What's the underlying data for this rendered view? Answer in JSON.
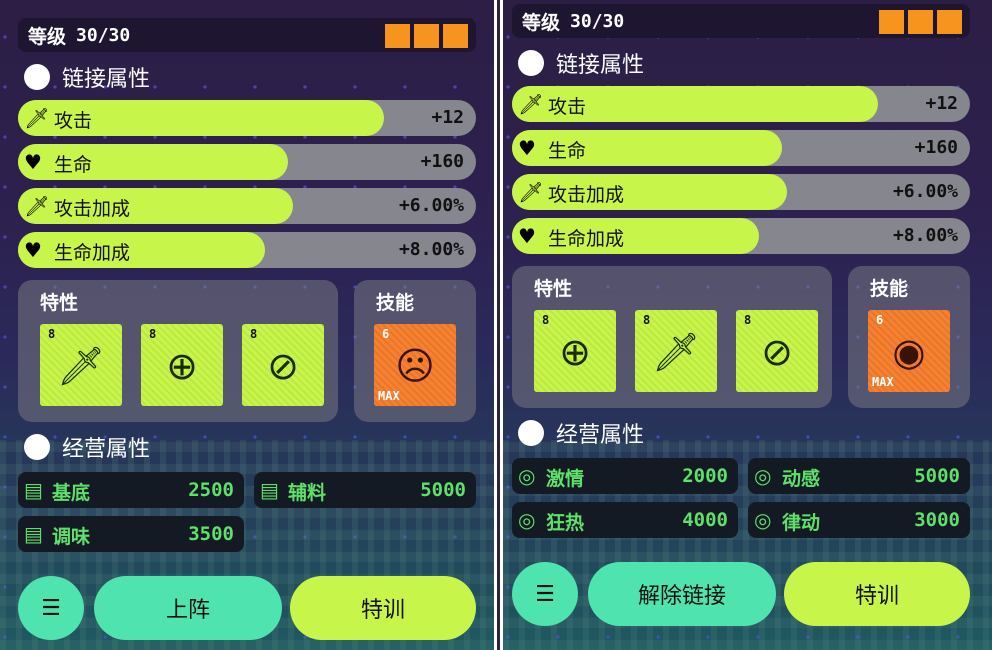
{
  "colors": {
    "accent_lime": "#c8f54a",
    "accent_teal": "#4fe3b0",
    "skill_orange": "#f58232",
    "pip_orange": "#f7941d",
    "business_green": "#5ee06a"
  },
  "panels": [
    {
      "level_label": "等级",
      "level_value": "30/30",
      "pips": 3,
      "link_title": "链接属性",
      "stats": [
        {
          "icon": "sword-icon",
          "label": "攻击",
          "value": "+12",
          "fill": 0.8
        },
        {
          "icon": "heart-icon",
          "label": "生命",
          "value": "+160",
          "fill": 0.59
        },
        {
          "icon": "sword-icon",
          "label": "攻击加成",
          "value": "+6.00%",
          "fill": 0.6
        },
        {
          "icon": "heart-icon",
          "label": "生命加成",
          "value": "+8.00%",
          "fill": 0.54
        }
      ],
      "traits_title": "特性",
      "traits": [
        {
          "icon": "sword-crit-icon",
          "level": "8"
        },
        {
          "icon": "attack-up-gear-icon",
          "level": "8"
        },
        {
          "icon": "percent-gear-icon",
          "level": "8"
        }
      ],
      "skill_title": "技能",
      "skill": {
        "icon": "demon-face-icon",
        "level": "6",
        "badge": "MAX"
      },
      "biz_title": "经营属性",
      "biz_icon": "box-icon",
      "biz": [
        {
          "label": "基底",
          "value": "2500"
        },
        {
          "label": "辅料",
          "value": "5000"
        },
        {
          "label": "调味",
          "value": "3500"
        }
      ],
      "buttons": {
        "menu_icon": "list-menu-icon",
        "main": "上阵",
        "train": "特训"
      }
    },
    {
      "level_label": "等级",
      "level_value": "30/30",
      "pips": 3,
      "link_title": "链接属性",
      "stats": [
        {
          "icon": "sword-icon",
          "label": "攻击",
          "value": "+12",
          "fill": 0.8
        },
        {
          "icon": "heart-icon",
          "label": "生命",
          "value": "+160",
          "fill": 0.59
        },
        {
          "icon": "sword-icon",
          "label": "攻击加成",
          "value": "+6.00%",
          "fill": 0.6
        },
        {
          "icon": "heart-icon",
          "label": "生命加成",
          "value": "+8.00%",
          "fill": 0.54
        }
      ],
      "traits_title": "特性",
      "traits": [
        {
          "icon": "attack-up-gear-icon",
          "level": "8"
        },
        {
          "icon": "sword-crit-icon",
          "level": "8"
        },
        {
          "icon": "percent-gear-icon",
          "level": "8"
        }
      ],
      "skill_title": "技能",
      "skill": {
        "icon": "eye-icon",
        "level": "6",
        "badge": "MAX"
      },
      "biz_title": "经营属性",
      "biz_icon": "ring-icon",
      "biz": [
        {
          "label": "激情",
          "value": "2000"
        },
        {
          "label": "动感",
          "value": "5000"
        },
        {
          "label": "狂热",
          "value": "4000"
        },
        {
          "label": "律动",
          "value": "3000"
        }
      ],
      "buttons": {
        "menu_icon": "list-menu-icon",
        "main": "解除链接",
        "train": "特训"
      }
    }
  ]
}
